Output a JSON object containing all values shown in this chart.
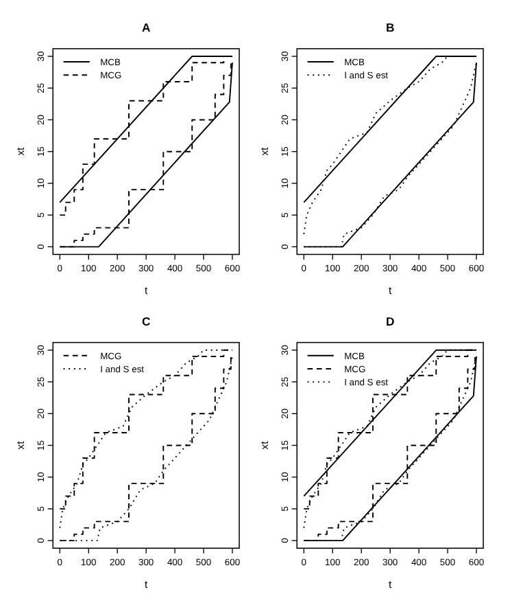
{
  "chart_data": [
    {
      "type": "line",
      "title": "A",
      "xlabel": "t",
      "ylabel": "xt",
      "xlim": [
        -24,
        624
      ],
      "ylim": [
        -1.2,
        31.2
      ],
      "xticks": [
        0,
        100,
        200,
        300,
        400,
        500,
        600
      ],
      "yticks": [
        0,
        5,
        10,
        15,
        20,
        25,
        30
      ],
      "legend": "top left",
      "series": [
        {
          "name": "MCB",
          "color": "#000000",
          "type": "line",
          "line_style": "solid",
          "x": [
            0,
            460,
            600
          ],
          "values": [
            7,
            30,
            30
          ]
        },
        {
          "color": "#000000",
          "type": "line",
          "line_style": "solid",
          "x": [
            0,
            135,
            590,
            600
          ],
          "values": [
            0,
            0,
            22.8,
            29
          ]
        },
        {
          "name": "MCG",
          "color": "#000000",
          "type": "step",
          "line_style": "dashed",
          "x": [
            0,
            20,
            50,
            80,
            120,
            240,
            360,
            460,
            570,
            600
          ],
          "values": [
            5,
            7,
            9,
            13,
            17,
            23,
            26,
            29,
            30,
            30
          ]
        },
        {
          "color": "#000000",
          "type": "step",
          "line_style": "dashed",
          "x": [
            0,
            50,
            80,
            120,
            240,
            360,
            460,
            540,
            570,
            595,
            600
          ],
          "values": [
            0,
            1,
            2,
            3,
            9,
            15,
            20,
            24,
            27,
            29,
            29
          ]
        }
      ]
    },
    {
      "type": "line",
      "title": "B",
      "xlabel": "t",
      "ylabel": "xt",
      "xlim": [
        -24,
        624
      ],
      "ylim": [
        -1.2,
        31.2
      ],
      "xticks": [
        0,
        100,
        200,
        300,
        400,
        500,
        600
      ],
      "yticks": [
        0,
        5,
        10,
        15,
        20,
        25,
        30
      ],
      "legend": "top left",
      "series": [
        {
          "name": "MCB",
          "color": "#000000",
          "type": "line",
          "line_style": "solid",
          "x": [
            0,
            460,
            600
          ],
          "values": [
            7,
            30,
            30
          ]
        },
        {
          "color": "#000000",
          "type": "line",
          "line_style": "solid",
          "x": [
            0,
            135,
            590,
            600
          ],
          "values": [
            0,
            0,
            22.8,
            29
          ]
        },
        {
          "name": "I and S est",
          "color": "#000000",
          "type": "line",
          "line_style": "dotted",
          "x": [
            0,
            10,
            30,
            60,
            80,
            100,
            130,
            160,
            220,
            250,
            300,
            360,
            400,
            440,
            480,
            500,
            600
          ],
          "values": [
            2,
            5,
            7,
            9,
            12,
            13,
            15,
            17,
            18,
            21,
            23,
            25,
            26,
            28,
            29,
            30,
            30
          ]
        },
        {
          "color": "#000000",
          "type": "line",
          "line_style": "dotted",
          "x": [
            0,
            130,
            140,
            200,
            240,
            280,
            330,
            360,
            400,
            440,
            480,
            520,
            550,
            580,
            600
          ],
          "values": [
            0,
            0,
            2,
            3,
            5,
            8,
            9,
            11,
            13,
            15,
            17,
            19,
            22,
            25,
            29
          ]
        }
      ]
    },
    {
      "type": "line",
      "title": "C",
      "xlabel": "t",
      "ylabel": "xt",
      "xlim": [
        -24,
        624
      ],
      "ylim": [
        -1.2,
        31.2
      ],
      "xticks": [
        0,
        100,
        200,
        300,
        400,
        500,
        600
      ],
      "yticks": [
        0,
        5,
        10,
        15,
        20,
        25,
        30
      ],
      "legend": "top left",
      "series": [
        {
          "name": "MCG",
          "color": "#000000",
          "type": "step",
          "line_style": "dashed",
          "x": [
            0,
            20,
            50,
            80,
            120,
            240,
            360,
            460,
            570,
            600
          ],
          "values": [
            5,
            7,
            9,
            13,
            17,
            23,
            26,
            29,
            30,
            30
          ]
        },
        {
          "color": "#000000",
          "type": "step",
          "line_style": "dashed",
          "x": [
            0,
            50,
            80,
            120,
            240,
            360,
            460,
            540,
            570,
            595,
            600
          ],
          "values": [
            0,
            1,
            2,
            3,
            9,
            15,
            20,
            24,
            27,
            29,
            29
          ]
        },
        {
          "name": "I and S est",
          "color": "#000000",
          "type": "line",
          "line_style": "dotted",
          "x": [
            0,
            10,
            30,
            60,
            80,
            100,
            130,
            160,
            220,
            250,
            300,
            360,
            400,
            440,
            480,
            500,
            600
          ],
          "values": [
            2,
            5,
            7,
            9,
            12,
            13,
            15,
            17,
            18,
            21,
            23,
            25,
            26,
            28,
            29,
            30,
            30
          ]
        },
        {
          "color": "#000000",
          "type": "line",
          "line_style": "dotted",
          "x": [
            0,
            130,
            140,
            200,
            240,
            280,
            330,
            360,
            400,
            440,
            480,
            520,
            550,
            580,
            600
          ],
          "values": [
            0,
            0,
            2,
            3,
            5,
            8,
            9,
            11,
            13,
            15,
            17,
            19,
            22,
            25,
            29
          ]
        }
      ]
    },
    {
      "type": "line",
      "title": "D",
      "xlabel": "t",
      "ylabel": "xt",
      "xlim": [
        -24,
        624
      ],
      "ylim": [
        -1.2,
        31.2
      ],
      "xticks": [
        0,
        100,
        200,
        300,
        400,
        500,
        600
      ],
      "yticks": [
        0,
        5,
        10,
        15,
        20,
        25,
        30
      ],
      "legend": "top left",
      "series": [
        {
          "name": "MCB",
          "color": "#000000",
          "type": "line",
          "line_style": "solid",
          "x": [
            0,
            460,
            600
          ],
          "values": [
            7,
            30,
            30
          ]
        },
        {
          "color": "#000000",
          "type": "line",
          "line_style": "solid",
          "x": [
            0,
            135,
            590,
            600
          ],
          "values": [
            0,
            0,
            22.8,
            29
          ]
        },
        {
          "name": "MCG",
          "color": "#000000",
          "type": "step",
          "line_style": "dashed",
          "x": [
            0,
            20,
            50,
            80,
            120,
            240,
            360,
            460,
            570,
            600
          ],
          "values": [
            5,
            7,
            9,
            13,
            17,
            23,
            26,
            29,
            30,
            30
          ]
        },
        {
          "color": "#000000",
          "type": "step",
          "line_style": "dashed",
          "x": [
            0,
            50,
            80,
            120,
            240,
            360,
            460,
            540,
            570,
            595,
            600
          ],
          "values": [
            0,
            1,
            2,
            3,
            9,
            15,
            20,
            24,
            27,
            29,
            29
          ]
        },
        {
          "name": "I and S est",
          "color": "#000000",
          "type": "line",
          "line_style": "dotted",
          "x": [
            0,
            10,
            30,
            60,
            80,
            100,
            130,
            160,
            220,
            250,
            300,
            360,
            400,
            440,
            480,
            500,
            600
          ],
          "values": [
            2,
            5,
            7,
            9,
            12,
            13,
            15,
            17,
            18,
            21,
            23,
            25,
            26,
            28,
            29,
            30,
            30
          ]
        },
        {
          "color": "#000000",
          "type": "line",
          "line_style": "dotted",
          "x": [
            0,
            130,
            140,
            200,
            240,
            280,
            330,
            360,
            400,
            440,
            480,
            520,
            550,
            580,
            600
          ],
          "values": [
            0,
            0,
            2,
            3,
            5,
            8,
            9,
            11,
            13,
            15,
            17,
            19,
            22,
            25,
            29
          ]
        }
      ]
    }
  ]
}
